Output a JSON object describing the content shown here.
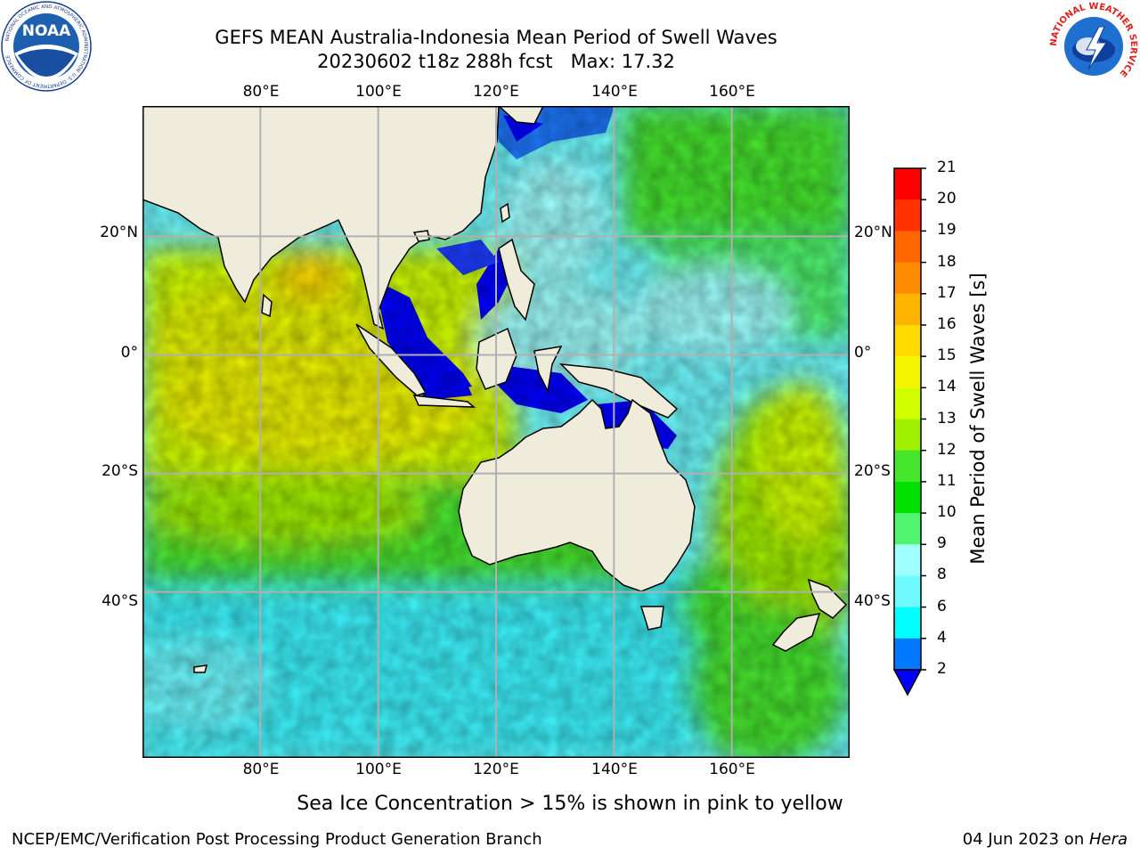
{
  "title": {
    "line1": "GEFS MEAN Australia-Indonesia Mean Period of Swell Waves",
    "line2": "20230602 t18z 288h fcst   Max: 17.32"
  },
  "axes": {
    "lon_labels": [
      "80°E",
      "100°E",
      "120°E",
      "140°E",
      "160°E"
    ],
    "lat_labels": [
      "20°N",
      "0°",
      "20°S",
      "40°S"
    ],
    "lon_values": [
      80,
      100,
      120,
      140,
      160
    ],
    "lat_values": [
      20,
      0,
      -20,
      -40
    ],
    "lon_range": [
      60,
      180
    ],
    "lat_range": [
      -68,
      42
    ],
    "grid": true
  },
  "colorbar": {
    "label": "Mean Period of Swell Waves [s]",
    "ticks": [
      "21",
      "20",
      "19",
      "18",
      "17",
      "16",
      "15",
      "14",
      "13",
      "12",
      "11",
      "10",
      "9",
      "8",
      "6",
      "4",
      "2"
    ],
    "colors": [
      "#ff0000",
      "#ff3300",
      "#ff6600",
      "#ff8c00",
      "#ffb400",
      "#ffdc00",
      "#f5f500",
      "#d2ff00",
      "#a0f000",
      "#46e62d",
      "#00e100",
      "#50f56e",
      "#a0ffff",
      "#6efaff",
      "#00ffff",
      "#0078ff",
      "#0000ff"
    ]
  },
  "logos": {
    "noara_text": "NOAA",
    "noaa_ring_text": "NATIONAL OCEANIC AND ATMOSPHERIC ADMINISTRATION",
    "noaa_ring_bottom": "U.S. DEPARTMENT OF COMMERCE",
    "nws_ring_text": "NATIONAL WEATHER SERVICE"
  },
  "note": "Sea Ice Concentration > 15% is shown in pink to yellow",
  "footer": {
    "left": "NCEP/EMC/Verification Post Processing Product Generation Branch",
    "right_date": "04 Jun 2023 on ",
    "right_machine": "Hera"
  }
}
